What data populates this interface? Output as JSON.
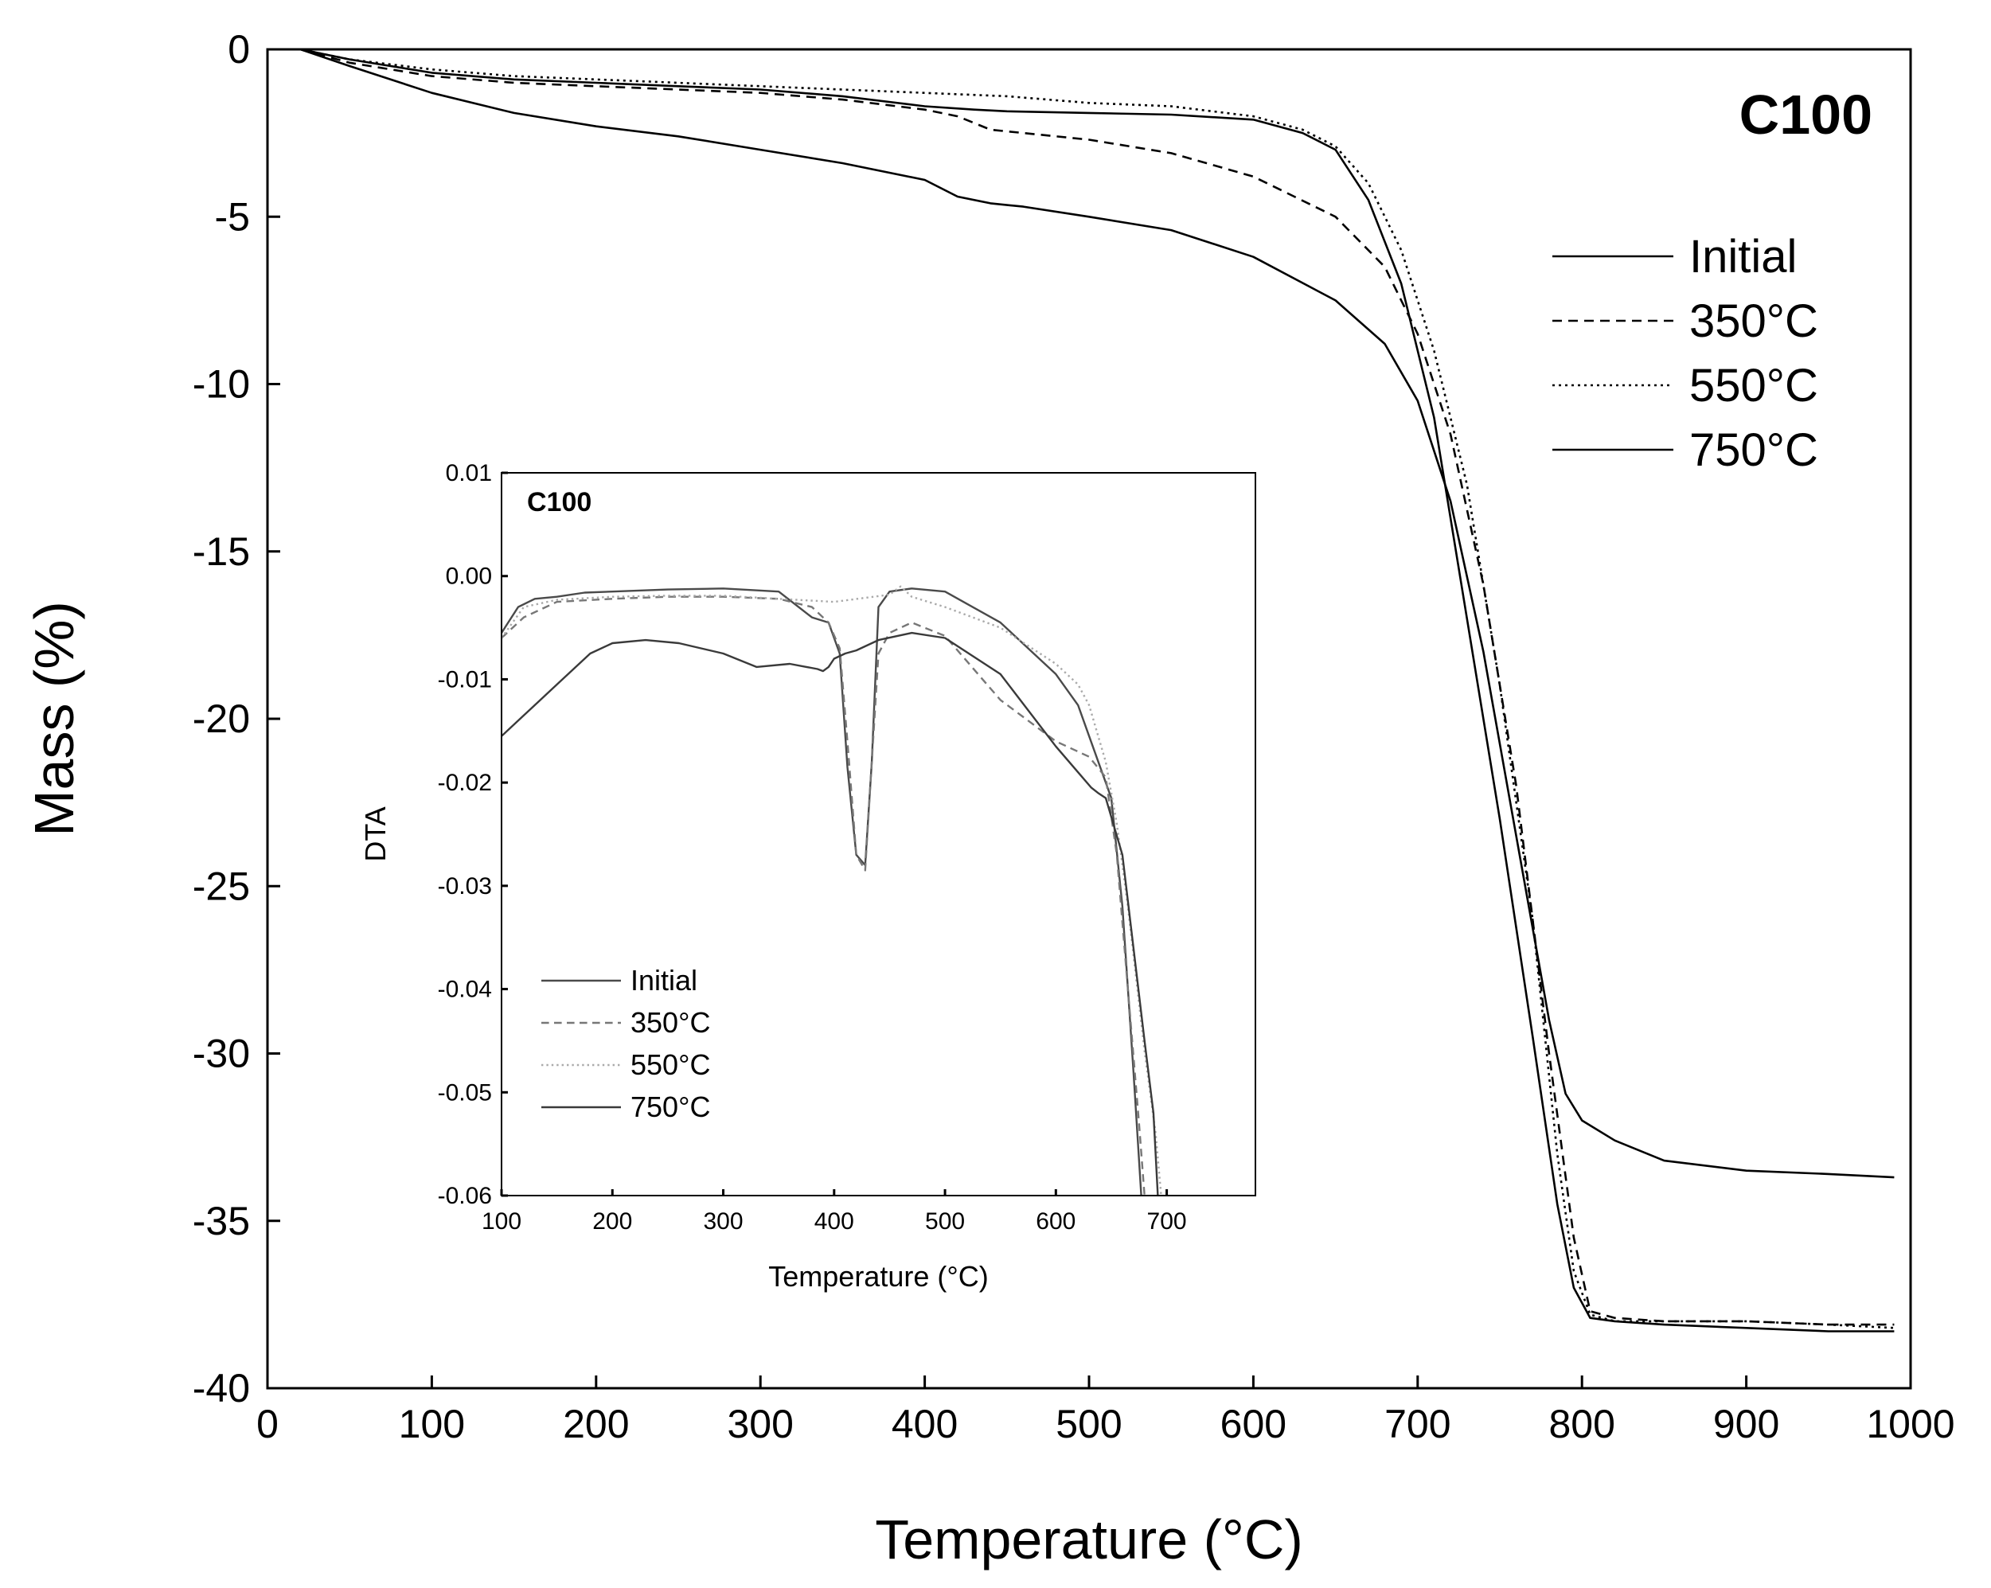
{
  "chart_data": [
    {
      "type": "line",
      "title": "C100",
      "xlabel": "Temperature (°C)",
      "ylabel": "Mass (%)",
      "xlim": [
        0,
        1000
      ],
      "ylim": [
        -40,
        0
      ],
      "xticks": [
        0,
        100,
        200,
        300,
        400,
        500,
        600,
        700,
        800,
        900,
        1000
      ],
      "yticks": [
        0,
        -5,
        -10,
        -15,
        -20,
        -25,
        -30,
        -35,
        -40
      ],
      "legend_position": "top-right",
      "series": [
        {
          "name": "Initial",
          "style": "solid",
          "color": "#000000",
          "x": [
            20,
            50,
            100,
            150,
            200,
            250,
            300,
            350,
            400,
            430,
            450,
            500,
            550,
            600,
            630,
            650,
            670,
            690,
            710,
            730,
            750,
            770,
            785,
            795,
            805,
            820,
            850,
            900,
            950,
            990
          ],
          "y": [
            0,
            -0.3,
            -0.7,
            -0.9,
            -1.0,
            -1.1,
            -1.2,
            -1.4,
            -1.7,
            -1.8,
            -1.85,
            -1.9,
            -1.95,
            -2.1,
            -2.5,
            -3.0,
            -4.5,
            -7.0,
            -11.0,
            -17.0,
            -23.0,
            -29.5,
            -34.5,
            -37.0,
            -37.9,
            -38.0,
            -38.1,
            -38.2,
            -38.3,
            -38.3
          ]
        },
        {
          "name": "350°C",
          "style": "dashed",
          "color": "#000000",
          "x": [
            20,
            50,
            100,
            150,
            200,
            250,
            300,
            350,
            400,
            420,
            440,
            460,
            500,
            550,
            600,
            650,
            680,
            700,
            720,
            740,
            760,
            780,
            795,
            805,
            820,
            850,
            900,
            950,
            990
          ],
          "y": [
            0,
            -0.4,
            -0.8,
            -1.0,
            -1.1,
            -1.2,
            -1.3,
            -1.5,
            -1.8,
            -2.0,
            -2.4,
            -2.5,
            -2.7,
            -3.1,
            -3.8,
            -5.0,
            -6.5,
            -8.5,
            -11.5,
            -16.0,
            -22.0,
            -30.0,
            -35.5,
            -37.7,
            -37.9,
            -38.0,
            -38.0,
            -38.1,
            -38.1
          ]
        },
        {
          "name": "550°C",
          "style": "dotted",
          "color": "#000000",
          "x": [
            20,
            50,
            100,
            150,
            200,
            250,
            300,
            350,
            400,
            450,
            500,
            550,
            600,
            630,
            650,
            670,
            690,
            710,
            730,
            750,
            770,
            785,
            795,
            805,
            820,
            850,
            900,
            950,
            990
          ],
          "y": [
            0,
            -0.3,
            -0.6,
            -0.8,
            -0.9,
            -1.0,
            -1.1,
            -1.2,
            -1.3,
            -1.4,
            -1.6,
            -1.7,
            -2.0,
            -2.4,
            -2.9,
            -4.0,
            -6.0,
            -9.0,
            -13.0,
            -19.0,
            -26.0,
            -33.0,
            -36.5,
            -37.8,
            -38.0,
            -38.0,
            -38.0,
            -38.1,
            -38.2
          ]
        },
        {
          "name": "750°C",
          "style": "solid",
          "color": "#000000",
          "x": [
            20,
            50,
            100,
            150,
            200,
            250,
            300,
            350,
            400,
            420,
            440,
            460,
            500,
            550,
            600,
            650,
            680,
            700,
            720,
            740,
            760,
            780,
            790,
            800,
            820,
            850,
            900,
            950,
            990
          ],
          "y": [
            0,
            -0.5,
            -1.3,
            -1.9,
            -2.3,
            -2.6,
            -3.0,
            -3.4,
            -3.9,
            -4.4,
            -4.6,
            -4.7,
            -5.0,
            -5.4,
            -6.2,
            -7.5,
            -8.8,
            -10.5,
            -13.5,
            -18.0,
            -23.5,
            -29.0,
            -31.2,
            -32.0,
            -32.6,
            -33.2,
            -33.5,
            -33.6,
            -33.7
          ]
        }
      ]
    },
    {
      "type": "line",
      "title": "C100",
      "xlabel": "Temperature (°C)",
      "ylabel": "DTA",
      "xlim": [
        100,
        780
      ],
      "ylim": [
        -0.06,
        0.01
      ],
      "xticks": [
        100,
        200,
        300,
        400,
        500,
        600,
        700
      ],
      "yticks": [
        0.01,
        0.0,
        -0.01,
        -0.02,
        -0.03,
        -0.04,
        -0.05,
        -0.06
      ],
      "ytick_labels": [
        "0.01",
        "0.00",
        "-0.01",
        "-0.02",
        "-0.03",
        "-0.04",
        "-0.05",
        "-0.06"
      ],
      "legend_position": "bottom-left",
      "series": [
        {
          "name": "Initial",
          "style": "solid",
          "color": "#4a4a4a",
          "x": [
            100,
            115,
            130,
            150,
            175,
            200,
            250,
            300,
            350,
            380,
            395,
            405,
            412,
            420,
            428,
            434,
            440,
            450,
            470,
            500,
            550,
            600,
            620,
            630,
            640,
            650,
            660,
            670,
            677
          ],
          "y": [
            -0.0055,
            -0.003,
            -0.0022,
            -0.002,
            -0.0016,
            -0.0015,
            -0.0013,
            -0.0012,
            -0.0015,
            -0.004,
            -0.0045,
            -0.0075,
            -0.0185,
            -0.027,
            -0.028,
            -0.018,
            -0.003,
            -0.0015,
            -0.0012,
            -0.0015,
            -0.0045,
            -0.0095,
            -0.0125,
            -0.0155,
            -0.0185,
            -0.0215,
            -0.032,
            -0.048,
            -0.06
          ]
        },
        {
          "name": "350°C",
          "style": "dashed",
          "color": "#777777",
          "x": [
            100,
            120,
            150,
            200,
            250,
            300,
            350,
            380,
            395,
            405,
            412,
            420,
            428,
            434,
            440,
            450,
            470,
            500,
            550,
            600,
            630,
            645,
            655,
            665,
            675,
            680
          ],
          "y": [
            -0.006,
            -0.004,
            -0.0025,
            -0.0022,
            -0.002,
            -0.002,
            -0.0022,
            -0.003,
            -0.0045,
            -0.007,
            -0.016,
            -0.027,
            -0.0285,
            -0.018,
            -0.0075,
            -0.0055,
            -0.0045,
            -0.0058,
            -0.012,
            -0.016,
            -0.0175,
            -0.0195,
            -0.027,
            -0.04,
            -0.053,
            -0.06
          ]
        },
        {
          "name": "550°C",
          "style": "dotted",
          "color": "#aaaaaa",
          "x": [
            100,
            120,
            150,
            200,
            250,
            300,
            350,
            400,
            450,
            460,
            470,
            500,
            550,
            600,
            620,
            630,
            645,
            655,
            665,
            680,
            690,
            695
          ],
          "y": [
            -0.006,
            -0.003,
            -0.0023,
            -0.002,
            -0.0019,
            -0.0019,
            -0.0022,
            -0.0025,
            -0.0018,
            -0.001,
            -0.002,
            -0.003,
            -0.005,
            -0.0085,
            -0.0105,
            -0.0125,
            -0.018,
            -0.024,
            -0.032,
            -0.046,
            -0.054,
            -0.06
          ]
        },
        {
          "name": "750°C",
          "style": "solid",
          "color": "#3a3a3a",
          "x": [
            100,
            120,
            150,
            180,
            200,
            230,
            260,
            300,
            330,
            360,
            375,
            385,
            390,
            395,
            400,
            410,
            420,
            440,
            470,
            500,
            550,
            600,
            620,
            632,
            638,
            645,
            660,
            670,
            680,
            688,
            692
          ],
          "y": [
            -0.0155,
            -0.0135,
            -0.0105,
            -0.0075,
            -0.0065,
            -0.0062,
            -0.0065,
            -0.0075,
            -0.0088,
            -0.0085,
            -0.0088,
            -0.009,
            -0.0092,
            -0.0088,
            -0.008,
            -0.0075,
            -0.0072,
            -0.0062,
            -0.0055,
            -0.006,
            -0.0095,
            -0.0165,
            -0.019,
            -0.0205,
            -0.021,
            -0.0215,
            -0.027,
            -0.036,
            -0.045,
            -0.052,
            -0.06
          ]
        }
      ]
    }
  ]
}
